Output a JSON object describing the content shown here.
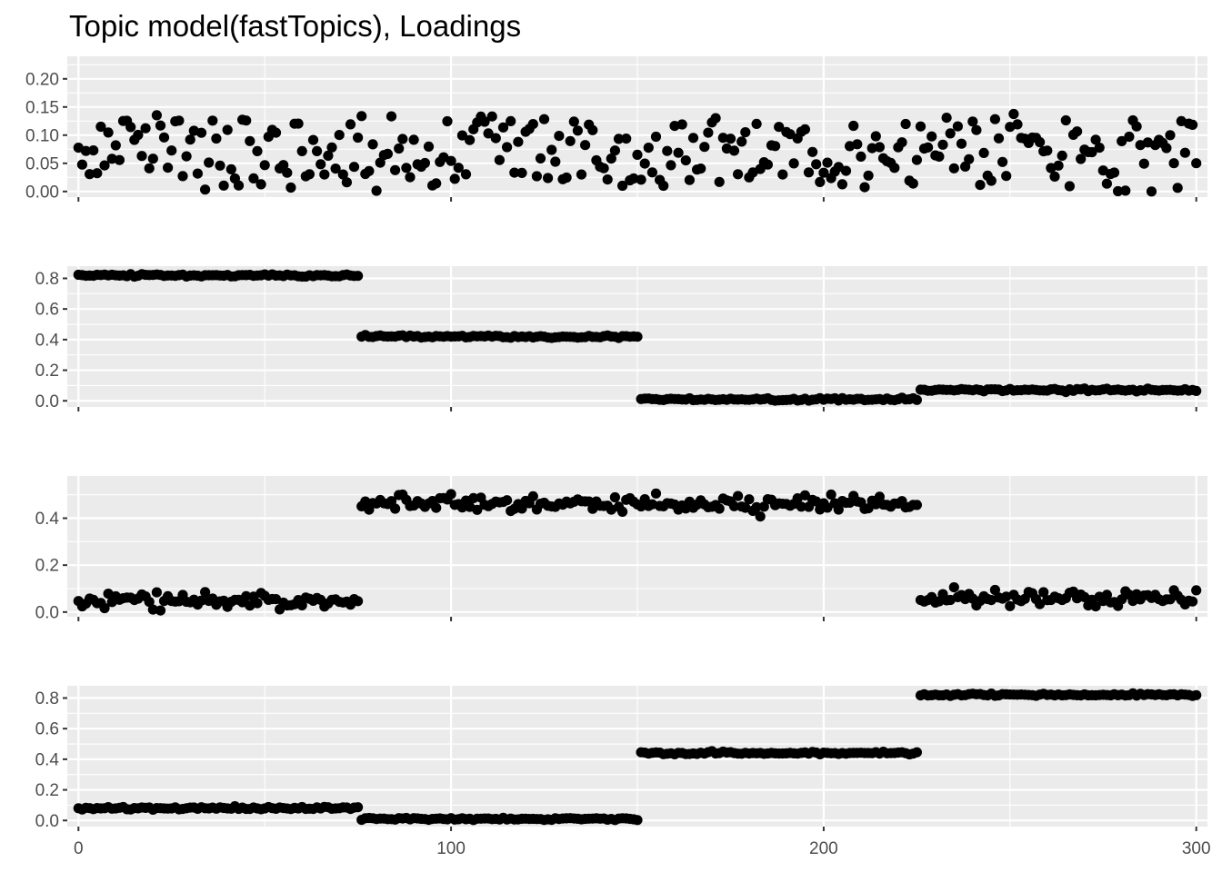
{
  "chart_data": {
    "type": "scatter",
    "title": "Topic model(fastTopics), Loadings",
    "xlim": [
      -3,
      303
    ],
    "x_ticks": [
      0,
      100,
      200,
      300
    ],
    "grid": true,
    "legend": "none",
    "n_points": 301,
    "panels": [
      {
        "name": "",
        "ylim": [
          -0.01,
          0.24
        ],
        "y_ticks": [
          0.0,
          0.05,
          0.1,
          0.15,
          0.2
        ],
        "y_tick_labels": [
          "0.00",
          "0.05",
          "0.10",
          "0.15",
          "0.20"
        ],
        "pattern": "noisy",
        "level": 0.07,
        "spread": 0.06
      },
      {
        "name": "",
        "ylim": [
          -0.04,
          0.88
        ],
        "y_ticks": [
          0.0,
          0.2,
          0.4,
          0.6,
          0.8
        ],
        "y_tick_labels": [
          "0.0",
          "0.2",
          "0.4",
          "0.6",
          "0.8"
        ],
        "pattern": "segments",
        "segments": [
          {
            "x": [
              0,
              75
            ],
            "y": 0.82
          },
          {
            "x": [
              76,
              150
            ],
            "y": 0.42
          },
          {
            "x": [
              151,
              225
            ],
            "y": 0.01
          },
          {
            "x": [
              226,
              300
            ],
            "y": 0.07
          }
        ],
        "noise": 0.01
      },
      {
        "name": "",
        "ylim": [
          -0.02,
          0.58
        ],
        "y_ticks": [
          0.0,
          0.2,
          0.4
        ],
        "y_tick_labels": [
          "0.0",
          "0.2",
          "0.4"
        ],
        "pattern": "segments",
        "segments": [
          {
            "x": [
              0,
              75
            ],
            "y": 0.05
          },
          {
            "x": [
              76,
              150
            ],
            "y": 0.46
          },
          {
            "x": [
              151,
              225
            ],
            "y": 0.46
          },
          {
            "x": [
              226,
              300
            ],
            "y": 0.06
          }
        ],
        "noise": 0.04
      },
      {
        "name": "",
        "ylim": [
          -0.04,
          0.88
        ],
        "y_ticks": [
          0.0,
          0.2,
          0.4,
          0.6,
          0.8
        ],
        "y_tick_labels": [
          "0.0",
          "0.2",
          "0.4",
          "0.6",
          "0.8"
        ],
        "pattern": "segments",
        "segments": [
          {
            "x": [
              0,
              75
            ],
            "y": 0.08
          },
          {
            "x": [
              76,
              150
            ],
            "y": 0.01
          },
          {
            "x": [
              151,
              225
            ],
            "y": 0.44
          },
          {
            "x": [
              226,
              300
            ],
            "y": 0.82
          }
        ],
        "noise": 0.01
      }
    ]
  }
}
